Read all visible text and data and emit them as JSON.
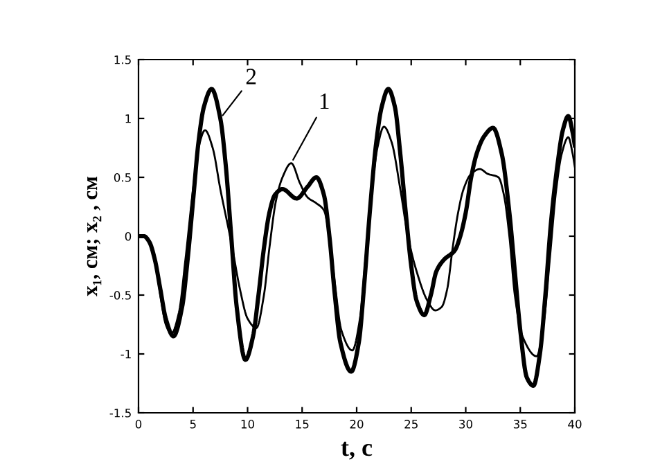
{
  "chart_data": {
    "type": "line",
    "xlabel": "t, с",
    "ylabel": "x₁, см; x₂ , см",
    "xlim": [
      0,
      40
    ],
    "ylim": [
      -1.5,
      1.5
    ],
    "xticks": [
      0,
      5,
      10,
      15,
      20,
      25,
      30,
      35,
      40
    ],
    "yticks": [
      -1.5,
      -1,
      -0.5,
      0,
      0.5,
      1,
      1.5
    ],
    "grid": false,
    "legend": "top",
    "marker": "none",
    "line_style": "solid",
    "series": [
      {
        "name": "1",
        "color": "#000000",
        "x": [
          0,
          0.5,
          1,
          1.5,
          2,
          2.5,
          3.0,
          3.7,
          4.3,
          5,
          5.5,
          6.1,
          6.8,
          7.5,
          8.5,
          9.3,
          10,
          10.8,
          11.5,
          12,
          12.6,
          13.2,
          14,
          14.8,
          15.5,
          16.3,
          17,
          17.5,
          18,
          18.6,
          19.6,
          20.3,
          20.8,
          21.3,
          21.9,
          22.5,
          23.2,
          24,
          24.7,
          25.5,
          26.5,
          27.2,
          27.8,
          28.3,
          28.8,
          29.3,
          29.8,
          30.5,
          31.3,
          32,
          33,
          33.5,
          34,
          34.5,
          35.2,
          36.5,
          37.2,
          37.7,
          38.3,
          38.8,
          39.4,
          39.8,
          40
        ],
        "values": [
          0,
          0,
          -0.05,
          -0.2,
          -0.5,
          -0.75,
          -0.83,
          -0.65,
          -0.2,
          0.4,
          0.75,
          0.9,
          0.75,
          0.4,
          -0.05,
          -0.45,
          -0.7,
          -0.78,
          -0.5,
          -0.1,
          0.3,
          0.5,
          0.62,
          0.45,
          0.33,
          0.28,
          0.22,
          0,
          -0.4,
          -0.8,
          -0.97,
          -0.7,
          -0.2,
          0.3,
          0.75,
          0.93,
          0.8,
          0.4,
          0,
          -0.3,
          -0.55,
          -0.63,
          -0.6,
          -0.45,
          -0.1,
          0.2,
          0.4,
          0.53,
          0.57,
          0.53,
          0.5,
          0.35,
          0,
          -0.5,
          -0.85,
          -1.02,
          -0.7,
          -0.2,
          0.4,
          0.7,
          0.84,
          0.7,
          0.59
        ]
      },
      {
        "name": "2",
        "color": "#000000",
        "x": [
          0,
          0.5,
          1,
          1.5,
          2,
          2.5,
          3.2,
          4,
          4.5,
          5,
          5.5,
          6,
          6.7,
          7.5,
          8,
          8.5,
          9,
          9.8,
          10.5,
          11,
          11.5,
          12,
          12.5,
          13.2,
          14.5,
          15.5,
          16.3,
          17,
          17.5,
          18,
          18.5,
          19.5,
          20.2,
          20.7,
          21.2,
          21.8,
          22.3,
          22.9,
          23.5,
          24,
          24.5,
          25,
          25.5,
          26.2,
          26.8,
          27.3,
          28,
          29,
          29.5,
          30,
          30.5,
          31,
          31.7,
          32.5,
          33.3,
          34,
          34.5,
          35,
          35.6,
          36.2,
          36.8,
          37.3,
          37.8,
          38.4,
          38.9,
          39.4,
          39.8,
          40
        ],
        "values": [
          0,
          0,
          -0.05,
          -0.2,
          -0.45,
          -0.7,
          -0.85,
          -0.6,
          -0.2,
          0.3,
          0.8,
          1.1,
          1.25,
          1,
          0.6,
          0,
          -0.6,
          -1.05,
          -0.85,
          -0.5,
          -0.1,
          0.2,
          0.35,
          0.4,
          0.32,
          0.42,
          0.5,
          0.35,
          0,
          -0.5,
          -0.9,
          -1.15,
          -0.9,
          -0.4,
          0.2,
          0.8,
          1.1,
          1.25,
          1.1,
          0.7,
          0.2,
          -0.25,
          -0.55,
          -0.67,
          -0.5,
          -0.3,
          -0.2,
          -0.12,
          0,
          0.2,
          0.5,
          0.7,
          0.85,
          0.92,
          0.7,
          0.2,
          -0.3,
          -0.8,
          -1.2,
          -1.27,
          -1,
          -0.5,
          0.1,
          0.6,
          0.9,
          1.02,
          0.88,
          0.77
        ]
      }
    ]
  }
}
